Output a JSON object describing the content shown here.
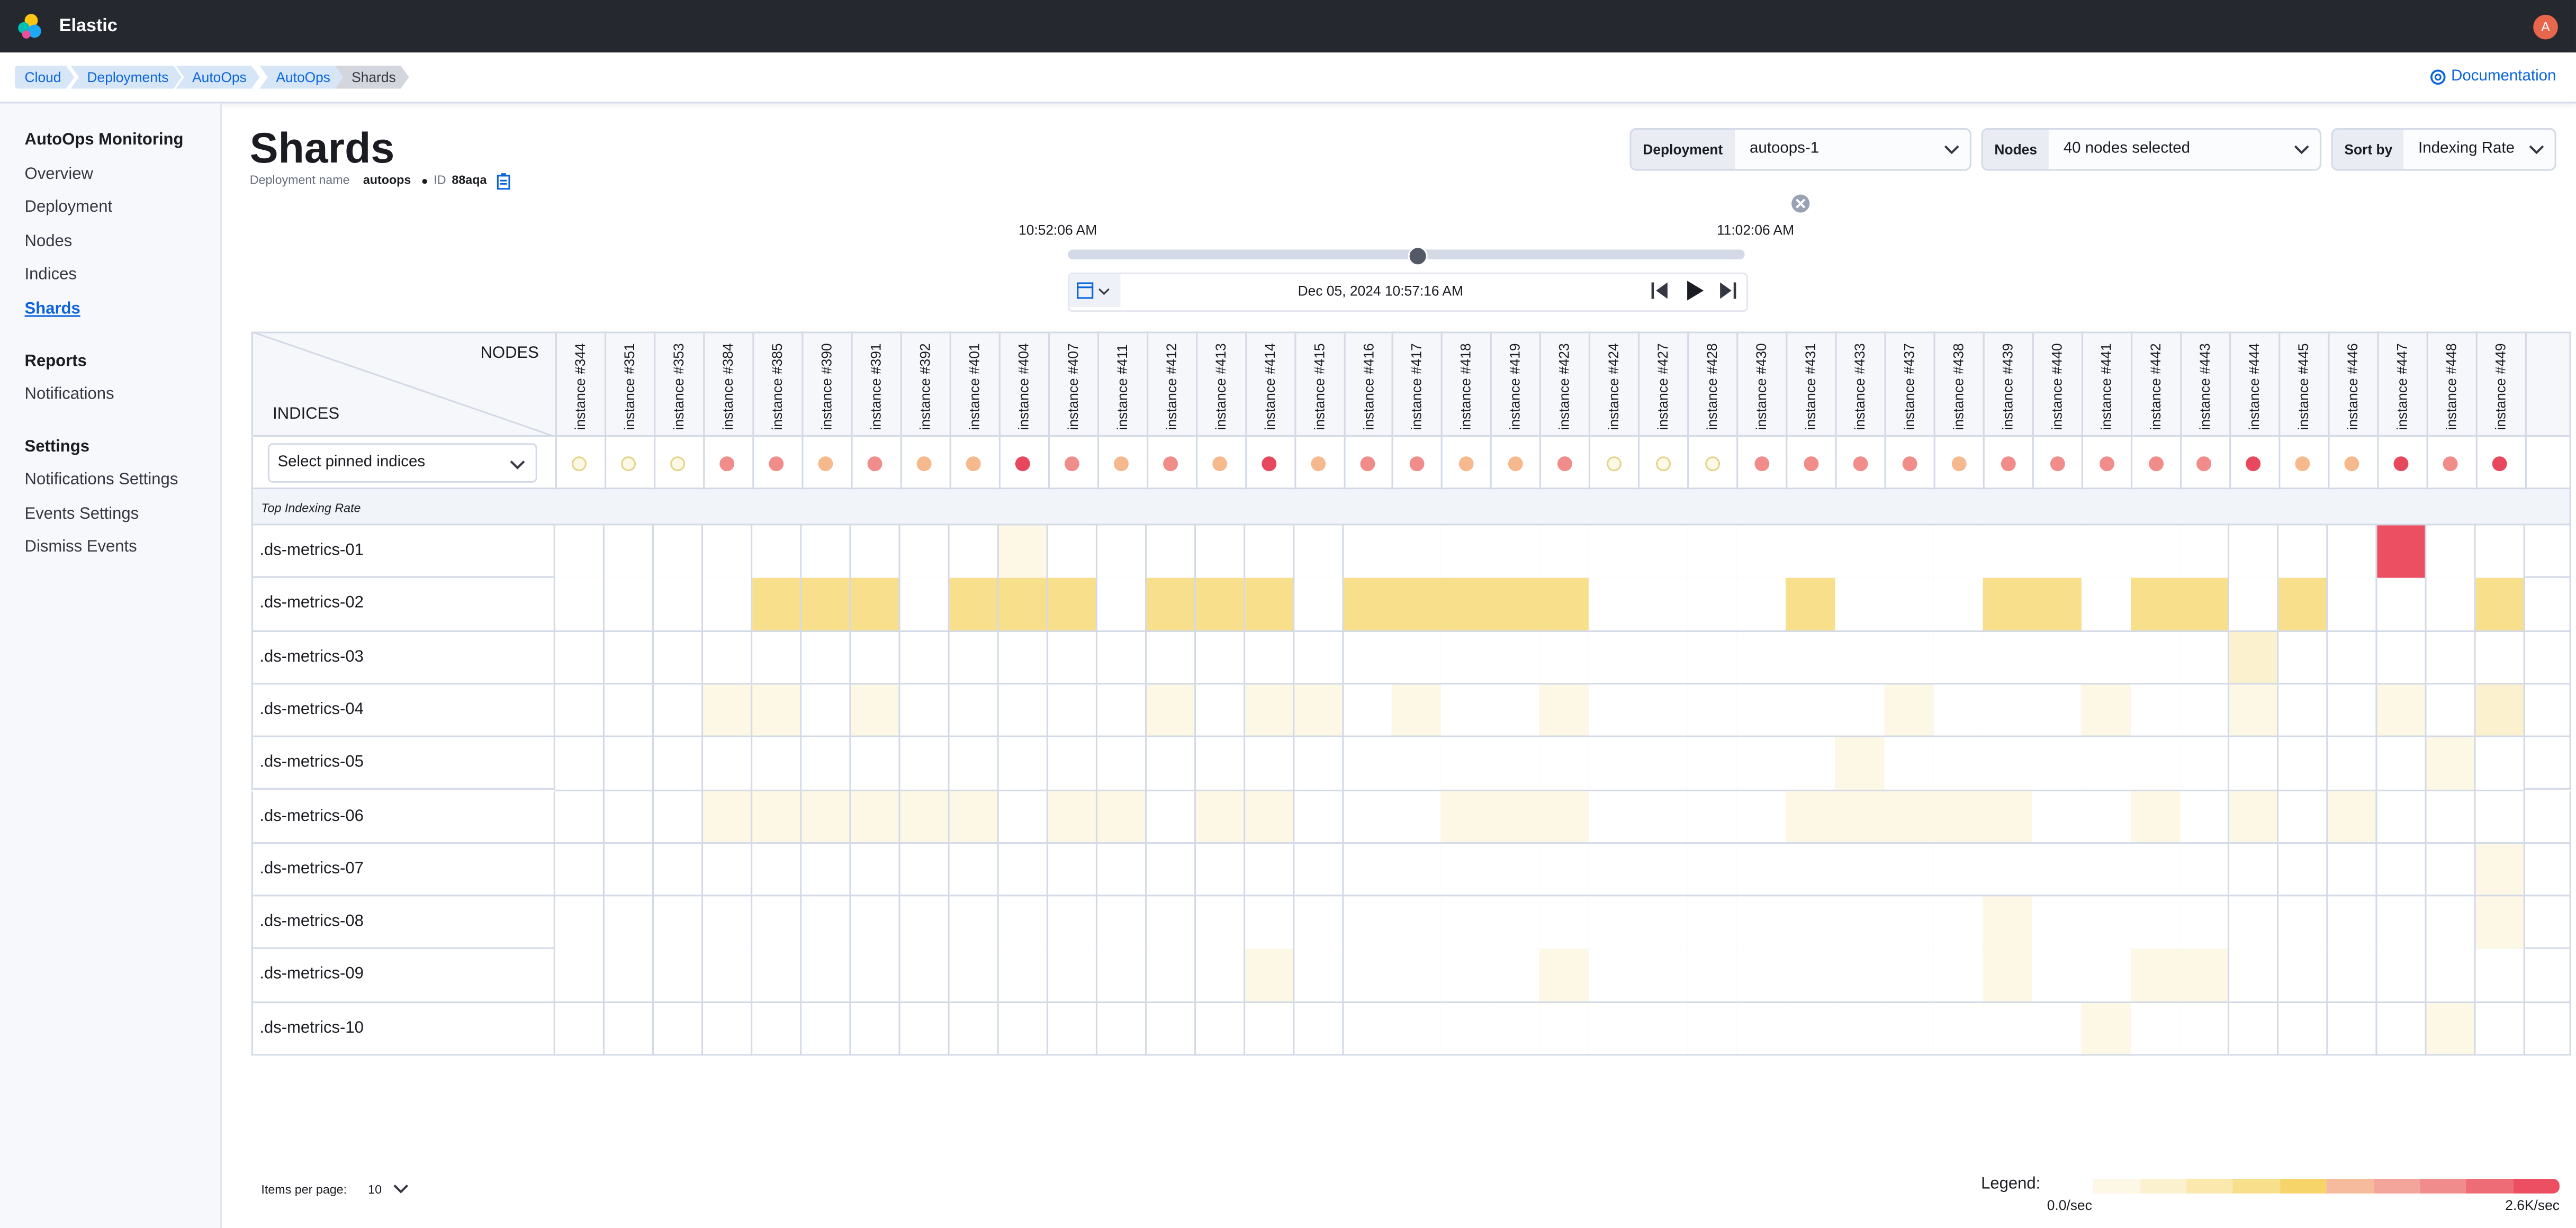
{
  "header": {
    "brand": "Elastic",
    "avatar": "A"
  },
  "breadcrumbs": [
    "Cloud",
    "Deployments",
    "AutoOps",
    "AutoOps",
    "Shards"
  ],
  "documentation": "Documentation",
  "sidebar": [
    {
      "heading": "AutoOps Monitoring",
      "items": [
        "Overview",
        "Deployment",
        "Nodes",
        "Indices",
        "Shards"
      ]
    },
    {
      "heading": "Reports",
      "items": [
        "Notifications"
      ]
    },
    {
      "heading": "Settings",
      "items": [
        "Notifications Settings",
        "Events Settings",
        "Dismiss Events"
      ]
    }
  ],
  "page": {
    "title": "Shards",
    "deployment_name_label": "Deployment name",
    "deployment_name": "autoops",
    "id_label": "ID",
    "id": "88aqa"
  },
  "controls": [
    {
      "label": "Deployment",
      "value": "autoops-1"
    },
    {
      "label": "Nodes",
      "value": "40 nodes selected"
    },
    {
      "label": "Sort by",
      "value": "Indexing Rate"
    }
  ],
  "time": {
    "start": "10:52:06 AM",
    "end": "11:02:06 AM",
    "current": "Dec 05, 2024 10:57:16 AM"
  },
  "table": {
    "corner_nodes": "NODES",
    "corner_indices": "INDICES",
    "pinned_placeholder": "Select pinned indices",
    "section_label": "Top Indexing Rate",
    "nodes": [
      "instance #344",
      "instance #351",
      "instance #353",
      "instance #384",
      "instance #385",
      "instance #390",
      "instance #391",
      "instance #392",
      "instance #401",
      "instance #404",
      "instance #407",
      "instance #411",
      "instance #412",
      "instance #413",
      "instance #414",
      "instance #415",
      "instance #416",
      "instance #417",
      "instance #418",
      "instance #419",
      "instance #423",
      "instance #424",
      "instance #427",
      "instance #428",
      "instance #430",
      "instance #431",
      "instance #433",
      "instance #437",
      "instance #438",
      "instance #439",
      "instance #440",
      "instance #441",
      "instance #442",
      "instance #443",
      "instance #444",
      "instance #445",
      "instance #446",
      "instance #447",
      "instance #448",
      "instance #449"
    ],
    "status_colors": [
      "#fdf8e6",
      "#f6b98e",
      "#f08c8a",
      "#e8485d"
    ],
    "node_status": [
      0,
      0,
      0,
      2,
      2,
      1,
      2,
      1,
      1,
      3,
      2,
      1,
      2,
      1,
      3,
      1,
      2,
      2,
      1,
      1,
      2,
      0,
      0,
      0,
      2,
      2,
      2,
      2,
      1,
      2,
      2,
      2,
      2,
      2,
      3,
      1,
      1,
      3,
      2,
      3
    ],
    "rows": [
      {
        "index": ".ds-metrics-01",
        "levels": [
          0,
          0,
          0,
          0,
          0,
          0,
          0,
          0,
          0,
          1,
          0,
          0,
          0,
          0,
          0,
          0,
          0,
          0,
          0,
          0,
          0,
          0,
          0,
          0,
          0,
          0,
          0,
          0,
          0,
          0,
          0,
          0,
          0,
          0,
          0,
          0,
          0,
          10,
          0,
          0
        ]
      },
      {
        "index": ".ds-metrics-02",
        "levels": [
          0,
          0,
          0,
          0,
          4,
          4,
          4,
          0,
          4,
          4,
          4,
          0,
          4,
          4,
          4,
          0,
          4,
          4,
          4,
          4,
          4,
          0,
          0,
          0,
          0,
          4,
          0,
          0,
          0,
          4,
          4,
          0,
          4,
          4,
          0,
          4,
          0,
          0,
          0,
          4
        ]
      },
      {
        "index": ".ds-metrics-03",
        "levels": [
          0,
          0,
          0,
          0,
          0,
          0,
          0,
          0,
          0,
          0,
          0,
          0,
          0,
          0,
          0,
          0,
          0,
          0,
          0,
          0,
          0,
          0,
          0,
          0,
          0,
          0,
          0,
          0,
          0,
          0,
          0,
          0,
          0,
          0,
          2,
          0,
          0,
          0,
          0,
          0
        ]
      },
      {
        "index": ".ds-metrics-04",
        "levels": [
          0,
          0,
          0,
          1,
          1,
          0,
          1,
          0,
          0,
          0,
          0,
          0,
          1,
          0,
          1,
          1,
          0,
          1,
          0,
          0,
          1,
          0,
          0,
          0,
          0,
          0,
          0,
          1,
          0,
          0,
          0,
          1,
          0,
          0,
          1,
          0,
          0,
          1,
          0,
          2
        ]
      },
      {
        "index": ".ds-metrics-05",
        "levels": [
          0,
          0,
          0,
          0,
          0,
          0,
          0,
          0,
          0,
          0,
          0,
          0,
          0,
          0,
          0,
          0,
          0,
          0,
          0,
          0,
          0,
          0,
          0,
          0,
          0,
          0,
          1,
          0,
          0,
          0,
          0,
          0,
          0,
          0,
          0,
          0,
          0,
          0,
          1,
          0
        ]
      },
      {
        "index": ".ds-metrics-06",
        "levels": [
          0,
          0,
          0,
          1,
          1,
          1,
          1,
          1,
          1,
          0,
          1,
          1,
          0,
          1,
          1,
          0,
          0,
          0,
          1,
          1,
          1,
          0,
          0,
          0,
          0,
          1,
          1,
          1,
          1,
          1,
          0,
          0,
          1,
          0,
          1,
          0,
          1,
          0,
          0,
          0
        ]
      },
      {
        "index": ".ds-metrics-07",
        "levels": [
          0,
          0,
          0,
          0,
          0,
          0,
          0,
          0,
          0,
          0,
          0,
          0,
          0,
          0,
          0,
          0,
          0,
          0,
          0,
          0,
          0,
          0,
          0,
          0,
          0,
          0,
          0,
          0,
          0,
          0,
          0,
          0,
          0,
          0,
          0,
          0,
          0,
          0,
          0,
          1
        ]
      },
      {
        "index": ".ds-metrics-08",
        "levels": [
          0,
          0,
          0,
          0,
          0,
          0,
          0,
          0,
          0,
          0,
          0,
          0,
          0,
          0,
          0,
          0,
          0,
          0,
          0,
          0,
          0,
          0,
          0,
          0,
          0,
          0,
          0,
          0,
          0,
          1,
          0,
          0,
          0,
          0,
          0,
          0,
          0,
          0,
          0,
          1
        ]
      },
      {
        "index": ".ds-metrics-09",
        "levels": [
          0,
          0,
          0,
          0,
          0,
          0,
          0,
          0,
          0,
          0,
          0,
          0,
          0,
          0,
          1,
          0,
          0,
          0,
          0,
          0,
          1,
          0,
          0,
          0,
          0,
          0,
          0,
          0,
          0,
          1,
          0,
          0,
          1,
          1,
          0,
          0,
          0,
          0,
          0,
          0
        ]
      },
      {
        "index": ".ds-metrics-10",
        "levels": [
          0,
          0,
          0,
          0,
          0,
          0,
          0,
          0,
          0,
          0,
          0,
          0,
          0,
          0,
          0,
          0,
          0,
          0,
          0,
          0,
          0,
          0,
          0,
          0,
          0,
          0,
          0,
          0,
          0,
          0,
          0,
          1,
          0,
          0,
          0,
          0,
          0,
          0,
          1,
          0
        ]
      }
    ]
  },
  "legend": {
    "label": "Legend:",
    "min_label": "0.0/sec",
    "max_label": "2.6K/sec",
    "colors": [
      "#fdf8e6",
      "#fcf1cf",
      "#fae8ac",
      "#f8df8c",
      "#f6d46a",
      "#f6bb9c",
      "#f3a59c",
      "#f08c8b",
      "#ee6c76",
      "#ec4f62"
    ]
  },
  "pagination": {
    "label": "Items per page:",
    "value": "10"
  }
}
